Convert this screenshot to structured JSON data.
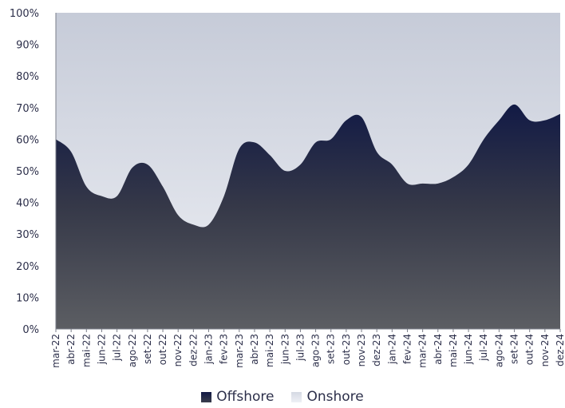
{
  "chart_data": {
    "type": "area",
    "stacked": true,
    "percent_stacked": true,
    "ylim": [
      0,
      100
    ],
    "yticks": [
      "0%",
      "10%",
      "20%",
      "30%",
      "40%",
      "50%",
      "60%",
      "70%",
      "80%",
      "90%",
      "100%"
    ],
    "categories": [
      "mar-22",
      "abr-22",
      "mai-22",
      "jun-22",
      "jul-22",
      "ago-22",
      "set-22",
      "out-22",
      "nov-22",
      "dez-22",
      "jan-23",
      "fev-23",
      "mar-23",
      "abr-23",
      "mai-23",
      "jun-23",
      "jul-23",
      "ago-23",
      "set-23",
      "out-23",
      "nov-23",
      "dez-23",
      "jan-24",
      "fev-24",
      "mar-24",
      "abr-24",
      "mai-24",
      "jun-24",
      "jul-24",
      "ago-24",
      "set-24",
      "out-24",
      "nov-24",
      "dez-24"
    ],
    "offshore_values": [
      60,
      56,
      45,
      42,
      42,
      51,
      52,
      45,
      36,
      33,
      33,
      42,
      57,
      59,
      55,
      50,
      52,
      59,
      60,
      66,
      67,
      56,
      52,
      46,
      46,
      46,
      48,
      52,
      60,
      66,
      71,
      66,
      66,
      68
    ],
    "series": [
      {
        "name": "Offshore",
        "color": "#151b40"
      },
      {
        "name": "Onshore",
        "color": "#dfe3ec"
      }
    ],
    "legend_position": "bottom-center",
    "grid": false
  }
}
